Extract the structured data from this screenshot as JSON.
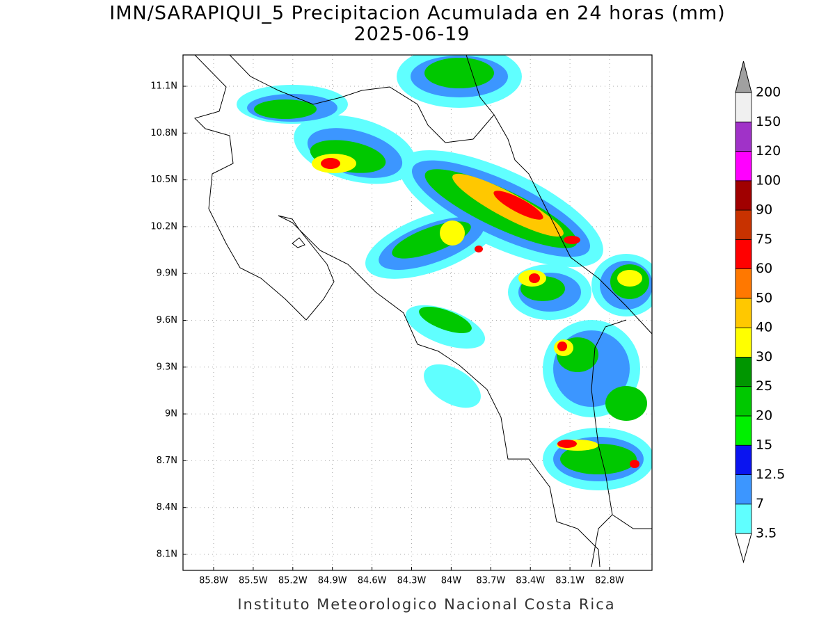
{
  "title": "IMN/SARAPIQUI_5 Precipitacion Acumulada en 24 horas (mm)",
  "subtitle": "2025-06-19",
  "map": {
    "lat_ticks": [
      "11.1N",
      "10.8N",
      "10.5N",
      "10.2N",
      "9.9N",
      "9.6N",
      "9.3N",
      "9N",
      "8.7N",
      "8.4N",
      "8.1N"
    ],
    "lon_ticks": [
      "85.8W",
      "85.5W",
      "85.2W",
      "84.9W",
      "84.6W",
      "84.3W",
      "84W",
      "83.7W",
      "83.4W",
      "83.1W",
      "82.8W"
    ]
  },
  "colorbar": {
    "levels": [
      3.5,
      7,
      12.5,
      15,
      20,
      25,
      30,
      40,
      50,
      60,
      75,
      90,
      100,
      120,
      150,
      200
    ],
    "colors": [
      "#ffffff",
      "#60ffff",
      "#3c96ff",
      "#0a14f0",
      "#00f000",
      "#00c800",
      "#009600",
      "#ffff00",
      "#ffc800",
      "#ff7800",
      "#ff0000",
      "#c83200",
      "#a00000",
      "#ff00ff",
      "#a032c8",
      "#f0f0f0",
      "#a0a0a0"
    ]
  },
  "footer": "Instituto Meteorologico Nacional Costa Rica"
}
